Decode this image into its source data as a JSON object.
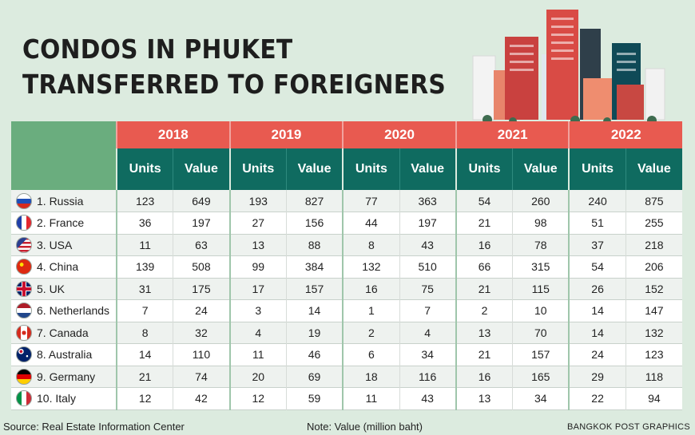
{
  "title": {
    "line1": "CONDOS IN PHUKET",
    "line2": "TRANSFERRED TO FOREIGNERS"
  },
  "colors": {
    "year_header": "#e85a50",
    "sub_header": "#0f6b60",
    "corner": "#6aad7e",
    "background": "#dcebdf"
  },
  "chart_data": {
    "type": "table",
    "title": "CONDOS IN PHUKET TRANSFERRED TO FOREIGNERS",
    "years": [
      "2018",
      "2019",
      "2020",
      "2021",
      "2022"
    ],
    "sub_columns": [
      "Units",
      "Value"
    ],
    "rows": [
      {
        "label": "1. Russia",
        "flag_icon": "russia-flag-icon",
        "values": [
          123,
          649,
          193,
          827,
          77,
          363,
          54,
          260,
          240,
          875
        ]
      },
      {
        "label": "2. France",
        "flag_icon": "france-flag-icon",
        "values": [
          36,
          197,
          27,
          156,
          44,
          197,
          21,
          98,
          51,
          255
        ]
      },
      {
        "label": "3. USA",
        "flag_icon": "usa-flag-icon",
        "values": [
          11,
          63,
          13,
          88,
          8,
          43,
          16,
          78,
          37,
          218
        ]
      },
      {
        "label": "4. China",
        "flag_icon": "china-flag-icon",
        "values": [
          139,
          508,
          99,
          384,
          132,
          510,
          66,
          315,
          54,
          206
        ]
      },
      {
        "label": "5. UK",
        "flag_icon": "uk-flag-icon",
        "values": [
          31,
          175,
          17,
          157,
          16,
          75,
          21,
          115,
          26,
          152
        ]
      },
      {
        "label": "6. Netherlands",
        "flag_icon": "netherlands-flag-icon",
        "values": [
          7,
          24,
          3,
          14,
          1,
          7,
          2,
          10,
          14,
          147
        ]
      },
      {
        "label": "7. Canada",
        "flag_icon": "canada-flag-icon",
        "values": [
          8,
          32,
          4,
          19,
          2,
          4,
          13,
          70,
          14,
          132
        ]
      },
      {
        "label": "8. Australia",
        "flag_icon": "australia-flag-icon",
        "values": [
          14,
          110,
          11,
          46,
          6,
          34,
          21,
          157,
          24,
          123
        ]
      },
      {
        "label": "9. Germany",
        "flag_icon": "germany-flag-icon",
        "values": [
          21,
          74,
          20,
          69,
          18,
          116,
          16,
          165,
          29,
          118
        ]
      },
      {
        "label": "10. Italy",
        "flag_icon": "italy-flag-icon",
        "values": [
          12,
          42,
          12,
          59,
          11,
          43,
          13,
          34,
          22,
          94
        ]
      }
    ]
  },
  "footer": {
    "source": "Source: Real Estate Information Center",
    "note": "Note: Value (million baht)",
    "credit": "BANGKOK POST GRAPHICS"
  }
}
